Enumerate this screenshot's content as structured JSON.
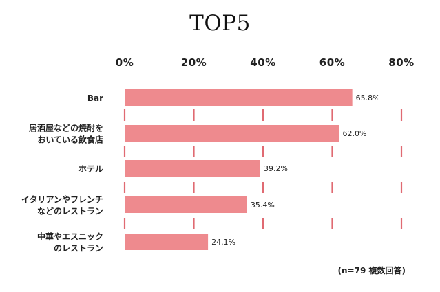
{
  "chart_data": {
    "type": "bar",
    "orientation": "horizontal",
    "title": "TOP5",
    "categories": [
      [
        "Bar"
      ],
      [
        "居酒屋などの焼酎を",
        "おいている飲食店"
      ],
      [
        "ホテル"
      ],
      [
        "イタリアンやフレンチ",
        "などのレストラン"
      ],
      [
        "中華やエスニック",
        "のレストラン"
      ]
    ],
    "values": [
      65.8,
      62.0,
      39.2,
      35.4,
      24.1
    ],
    "value_labels": [
      "65.8%",
      "62.0%",
      "39.2%",
      "35.4%",
      "24.1%"
    ],
    "x_ticks": [
      0,
      20,
      40,
      60,
      80
    ],
    "x_tick_labels": [
      "0%",
      "20%",
      "40%",
      "60%",
      "80%"
    ],
    "xlim": [
      0,
      80
    ],
    "xlabel": "",
    "ylabel": "",
    "x_axis_position": "top",
    "grid": "dashed vertical lines",
    "legend": "none",
    "note": "(n=79 複数回答)",
    "colors": {
      "bar": "#ee8a8e",
      "grid": "#e06a72",
      "text": "#222222"
    }
  }
}
